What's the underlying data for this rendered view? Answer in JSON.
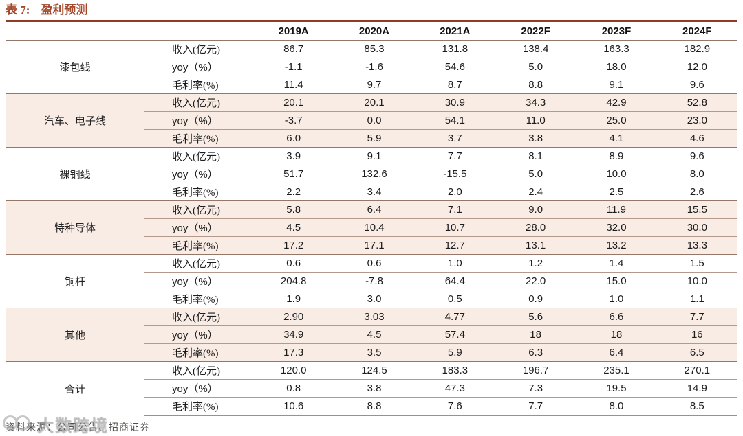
{
  "caption": {
    "prefix": "表 7:",
    "title": "盈利预测"
  },
  "table": {
    "columns": [
      "2019A",
      "2020A",
      "2021A",
      "2022F",
      "2023F",
      "2024F"
    ],
    "groups": [
      {
        "label": "漆包线",
        "rows": [
          {
            "metric": "收入(亿元)",
            "values": [
              "86.7",
              "85.3",
              "131.8",
              "138.4",
              "163.3",
              "182.9"
            ]
          },
          {
            "metric": "yoy（%）",
            "values": [
              "-1.1",
              "-1.6",
              "54.6",
              "5.0",
              "18.0",
              "12.0"
            ]
          },
          {
            "metric": "毛利率(%)",
            "values": [
              "11.4",
              "9.7",
              "8.7",
              "8.8",
              "9.1",
              "9.6"
            ]
          }
        ]
      },
      {
        "label": "汽车、电子线",
        "rows": [
          {
            "metric": "收入(亿元)",
            "values": [
              "20.1",
              "20.1",
              "30.9",
              "34.3",
              "42.9",
              "52.8"
            ]
          },
          {
            "metric": "yoy（%）",
            "values": [
              "-3.7",
              "0.0",
              "54.1",
              "11.0",
              "25.0",
              "23.0"
            ]
          },
          {
            "metric": "毛利率(%)",
            "values": [
              "6.0",
              "5.9",
              "3.7",
              "3.8",
              "4.1",
              "4.6"
            ]
          }
        ]
      },
      {
        "label": "裸铜线",
        "rows": [
          {
            "metric": "收入(亿元)",
            "values": [
              "3.9",
              "9.1",
              "7.7",
              "8.1",
              "8.9",
              "9.6"
            ]
          },
          {
            "metric": "yoy（%）",
            "values": [
              "51.7",
              "132.6",
              "-15.5",
              "5.0",
              "10.0",
              "8.0"
            ]
          },
          {
            "metric": "毛利率(%)",
            "values": [
              "2.2",
              "3.4",
              "2.0",
              "2.4",
              "2.5",
              "2.6"
            ]
          }
        ]
      },
      {
        "label": "特种导体",
        "rows": [
          {
            "metric": "收入(亿元)",
            "values": [
              "5.8",
              "6.4",
              "7.1",
              "9.0",
              "11.9",
              "15.5"
            ]
          },
          {
            "metric": "yoy（%）",
            "values": [
              "4.5",
              "10.4",
              "10.7",
              "28.0",
              "32.0",
              "30.0"
            ]
          },
          {
            "metric": "毛利率(%)",
            "values": [
              "17.2",
              "17.1",
              "12.7",
              "13.1",
              "13.2",
              "13.3"
            ]
          }
        ]
      },
      {
        "label": "铜杆",
        "rows": [
          {
            "metric": "收入(亿元)",
            "values": [
              "0.6",
              "0.6",
              "1.0",
              "1.2",
              "1.4",
              "1.5"
            ]
          },
          {
            "metric": "yoy（%）",
            "values": [
              "204.8",
              "-7.8",
              "64.4",
              "22.0",
              "15.0",
              "10.0"
            ]
          },
          {
            "metric": "毛利率(%)",
            "values": [
              "1.9",
              "3.0",
              "0.5",
              "0.9",
              "1.0",
              "1.1"
            ]
          }
        ]
      },
      {
        "label": "其他",
        "rows": [
          {
            "metric": "收入(亿元)",
            "values": [
              "2.90",
              "3.03",
              "4.77",
              "5.6",
              "6.6",
              "7.7"
            ]
          },
          {
            "metric": "yoy（%）",
            "values": [
              "34.9",
              "4.5",
              "57.4",
              "18",
              "18",
              "16"
            ]
          },
          {
            "metric": "毛利率(%)",
            "values": [
              "17.3",
              "3.5",
              "5.9",
              "6.3",
              "6.4",
              "6.5"
            ]
          }
        ]
      },
      {
        "label": "合计",
        "rows": [
          {
            "metric": "收入(亿元)",
            "values": [
              "120.0",
              "124.5",
              "183.3",
              "196.7",
              "235.1",
              "270.1"
            ]
          },
          {
            "metric": "yoy（%）",
            "values": [
              "0.8",
              "3.8",
              "47.3",
              "7.3",
              "19.5",
              "14.9"
            ]
          },
          {
            "metric": "毛利率(%)",
            "values": [
              "10.6",
              "8.8",
              "7.6",
              "7.7",
              "8.0",
              "8.5"
            ]
          }
        ]
      }
    ]
  },
  "footer": {
    "source": "资料来源：公司公告、招商证券"
  },
  "watermark": {
    "text": "大数跨境"
  },
  "colors": {
    "accent": "#a3492b",
    "top_rule": "#8e3c28",
    "row_line": "#b59a8b",
    "group_line": "#95776a",
    "bottom_rule": "#c08468",
    "pink_row": "#f9ece5"
  }
}
